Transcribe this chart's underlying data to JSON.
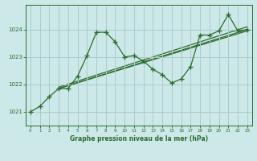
{
  "title": "Graphe pression niveau de la mer (hPa)",
  "background_color": "#cce8e8",
  "plot_bg_color": "#cce8e8",
  "grid_color": "#aacccc",
  "line_color": "#2d6b2d",
  "xlim": [
    -0.5,
    23.5
  ],
  "ylim": [
    1020.5,
    1024.9
  ],
  "yticks": [
    1021,
    1022,
    1023,
    1024
  ],
  "xticks": [
    0,
    1,
    2,
    3,
    4,
    5,
    6,
    7,
    8,
    9,
    10,
    11,
    12,
    13,
    14,
    15,
    16,
    17,
    18,
    19,
    20,
    21,
    22,
    23
  ],
  "main_line_x": [
    0,
    1,
    2,
    3,
    4,
    5,
    6,
    7,
    8,
    9,
    10,
    11,
    12,
    13,
    14,
    15,
    16,
    17,
    18,
    19,
    20,
    21,
    22,
    23
  ],
  "main_line_y": [
    1021.0,
    1021.2,
    1021.55,
    1021.85,
    1021.85,
    1022.3,
    1023.05,
    1023.9,
    1023.9,
    1023.55,
    1023.0,
    1023.05,
    1022.85,
    1022.55,
    1022.35,
    1022.05,
    1022.2,
    1022.65,
    1023.8,
    1023.8,
    1023.95,
    1024.55,
    1023.95,
    1024.0
  ],
  "trend_lines": [
    {
      "x": [
        3,
        23
      ],
      "y": [
        1021.85,
        1024.0
      ]
    },
    {
      "x": [
        3,
        23
      ],
      "y": [
        1021.85,
        1023.95
      ]
    },
    {
      "x": [
        3,
        23
      ],
      "y": [
        1021.9,
        1024.1
      ]
    }
  ]
}
